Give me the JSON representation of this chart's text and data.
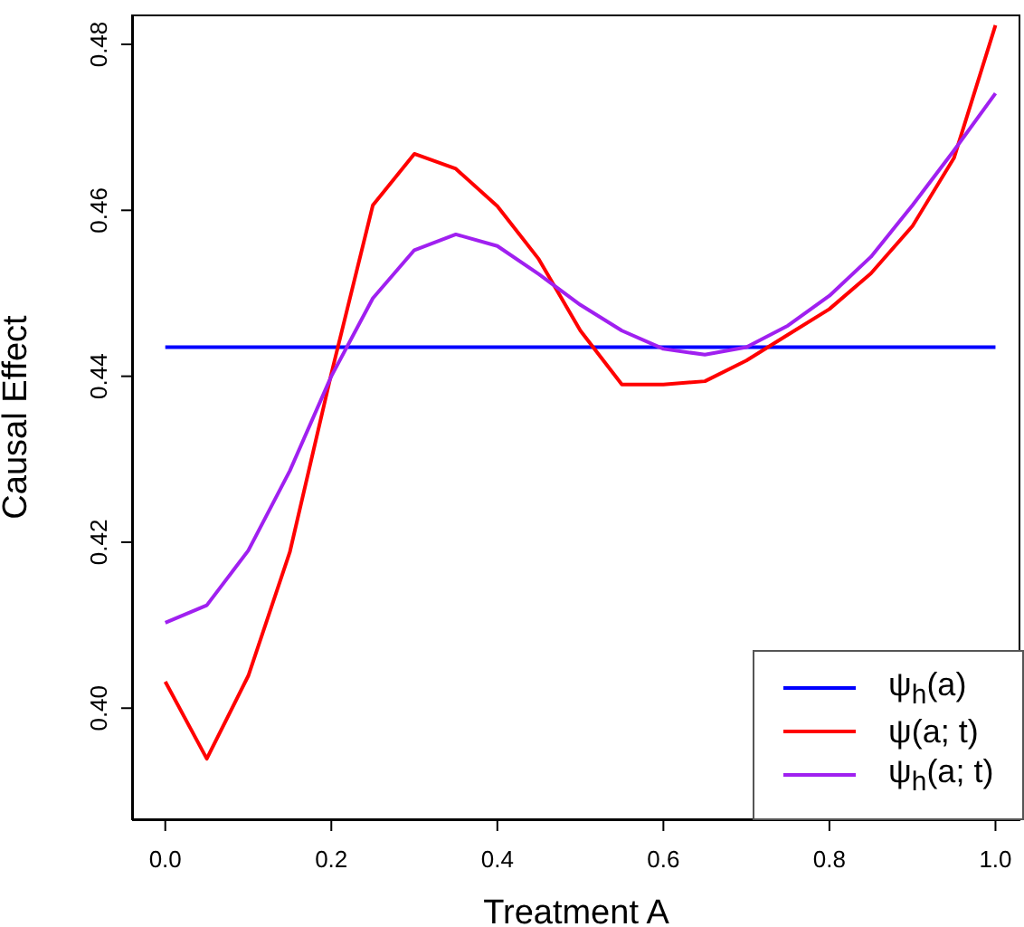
{
  "chart_data": {
    "type": "line",
    "xlabel": "Treatment A",
    "ylabel": "Causal Effect",
    "x": [
      0,
      0.05,
      0.1,
      0.15,
      0.2,
      0.25,
      0.3,
      0.35,
      0.4,
      0.45,
      0.5,
      0.55,
      0.6,
      0.65,
      0.7,
      0.75,
      0.8,
      0.85,
      0.9,
      0.95,
      1.0
    ],
    "series": [
      {
        "name": "ψ$_{h}$(a)",
        "color": "#0000ff",
        "values": [
          0.4435,
          0.4435,
          0.4435,
          0.4435,
          0.4435,
          0.4435,
          0.4435,
          0.4435,
          0.4435,
          0.4435,
          0.4435,
          0.4435,
          0.4435,
          0.4435,
          0.4435,
          0.4435,
          0.4435,
          0.4435,
          0.4435,
          0.4435,
          0.4435
        ]
      },
      {
        "name": "ψ(a; t)",
        "color": "#ff0000",
        "values": [
          0.4032,
          0.3939,
          0.4039,
          0.4188,
          0.4403,
          0.4606,
          0.4668,
          0.465,
          0.4605,
          0.4541,
          0.4455,
          0.439,
          0.439,
          0.4394,
          0.4419,
          0.445,
          0.4481,
          0.4524,
          0.4581,
          0.4663,
          0.4823
        ]
      },
      {
        "name": "ψ$_{h}$(a; t)",
        "color": "#a020f0",
        "values": [
          0.4103,
          0.4124,
          0.419,
          0.4286,
          0.44,
          0.4494,
          0.4552,
          0.4571,
          0.4557,
          0.4523,
          0.4486,
          0.4455,
          0.4433,
          0.4426,
          0.4435,
          0.4461,
          0.4497,
          0.4544,
          0.4606,
          0.4672,
          0.4741
        ]
      }
    ],
    "xlim": [
      -0.04,
      1.03
    ],
    "ylim": [
      0.3865,
      0.4836
    ],
    "xticks": [
      {
        "value": 0,
        "label": "0.0"
      },
      0.2,
      0.4,
      0.6,
      0.8,
      {
        "value": 1,
        "label": "1.0"
      }
    ],
    "yticks": [
      {
        "value": 0.4,
        "label": "0.40"
      },
      0.42,
      0.44,
      0.46,
      0.48
    ],
    "grid": false,
    "legend": "bottom right",
    "marker": "none",
    "line_style": "solid"
  }
}
